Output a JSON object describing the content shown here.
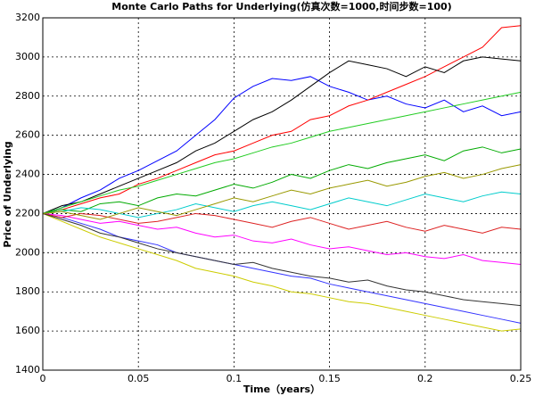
{
  "chart_data": {
    "type": "line",
    "title": "Monte Carlo Paths for Underlying(仿真次数=1000,时间步数=100)",
    "x_label": "Time（years）",
    "y_label": "Price of Underlying",
    "x": [
      0,
      0.01,
      0.02,
      0.03,
      0.04,
      0.05,
      0.06,
      0.07,
      0.08,
      0.09,
      0.1,
      0.11,
      0.12,
      0.13,
      0.14,
      0.15,
      0.16,
      0.17,
      0.18,
      0.19,
      0.2,
      0.21,
      0.22,
      0.23,
      0.24,
      0.25
    ],
    "xlim": [
      0,
      0.25
    ],
    "xticks": [
      0,
      0.05,
      0.1,
      0.15,
      0.2,
      0.25
    ],
    "ylim": [
      1400,
      3200
    ],
    "yticks": [
      1400,
      1600,
      1800,
      2000,
      2200,
      2400,
      2600,
      2800,
      3000,
      3200
    ],
    "grid": true,
    "series": [
      {
        "color": "#0000ff",
        "values": [
          2200,
          2230,
          2280,
          2320,
          2380,
          2420,
          2470,
          2520,
          2600,
          2680,
          2790,
          2850,
          2890,
          2880,
          2900,
          2850,
          2820,
          2780,
          2800,
          2760,
          2740,
          2780,
          2720,
          2750,
          2700,
          2720
        ]
      },
      {
        "color": "#ff0000",
        "values": [
          2200,
          2220,
          2250,
          2280,
          2300,
          2350,
          2380,
          2420,
          2460,
          2500,
          2520,
          2560,
          2600,
          2620,
          2680,
          2700,
          2750,
          2780,
          2820,
          2860,
          2900,
          2950,
          3000,
          3050,
          3150,
          3160
        ]
      },
      {
        "color": "#000000",
        "values": [
          2200,
          2240,
          2260,
          2300,
          2340,
          2380,
          2420,
          2460,
          2520,
          2560,
          2620,
          2680,
          2720,
          2780,
          2850,
          2920,
          2980,
          2960,
          2940,
          2900,
          2950,
          2920,
          2980,
          3000,
          2990,
          2980
        ]
      },
      {
        "color": "#cccc00",
        "values": [
          2200,
          2160,
          2120,
          2080,
          2050,
          2020,
          1990,
          1960,
          1920,
          1900,
          1880,
          1850,
          1830,
          1800,
          1790,
          1770,
          1750,
          1740,
          1720,
          1700,
          1680,
          1660,
          1640,
          1620,
          1600,
          1610
        ]
      },
      {
        "color": "#3333ff",
        "values": [
          2200,
          2180,
          2150,
          2120,
          2080,
          2060,
          2040,
          2000,
          1980,
          1960,
          1940,
          1920,
          1900,
          1880,
          1870,
          1840,
          1820,
          1800,
          1780,
          1760,
          1740,
          1720,
          1700,
          1680,
          1660,
          1640
        ]
      },
      {
        "color": "#00aa00",
        "values": [
          2200,
          2220,
          2210,
          2250,
          2260,
          2240,
          2280,
          2300,
          2290,
          2320,
          2350,
          2330,
          2360,
          2400,
          2380,
          2420,
          2450,
          2430,
          2460,
          2480,
          2500,
          2470,
          2520,
          2540,
          2510,
          2530
        ]
      },
      {
        "color": "#ff00ff",
        "values": [
          2200,
          2190,
          2170,
          2150,
          2160,
          2140,
          2120,
          2130,
          2100,
          2080,
          2090,
          2060,
          2050,
          2070,
          2040,
          2020,
          2030,
          2010,
          1990,
          2000,
          1980,
          1970,
          1990,
          1960,
          1950,
          1940
        ]
      },
      {
        "color": "#00cccc",
        "values": [
          2200,
          2210,
          2230,
          2220,
          2200,
          2180,
          2200,
          2220,
          2250,
          2230,
          2210,
          2240,
          2260,
          2240,
          2220,
          2250,
          2280,
          2260,
          2240,
          2270,
          2300,
          2280,
          2260,
          2290,
          2310,
          2300
        ]
      },
      {
        "color": "#dd2222",
        "values": [
          2200,
          2180,
          2200,
          2190,
          2170,
          2150,
          2160,
          2180,
          2200,
          2190,
          2170,
          2150,
          2130,
          2160,
          2180,
          2150,
          2120,
          2140,
          2160,
          2130,
          2110,
          2140,
          2120,
          2100,
          2130,
          2120
        ]
      },
      {
        "color": "#333333",
        "values": [
          2200,
          2170,
          2140,
          2100,
          2080,
          2050,
          2020,
          2000,
          1980,
          1960,
          1940,
          1950,
          1920,
          1900,
          1880,
          1870,
          1850,
          1860,
          1830,
          1810,
          1800,
          1780,
          1760,
          1750,
          1740,
          1730
        ]
      },
      {
        "color": "#22cc22",
        "values": [
          2200,
          2230,
          2260,
          2290,
          2320,
          2340,
          2370,
          2400,
          2430,
          2460,
          2480,
          2510,
          2540,
          2560,
          2590,
          2620,
          2640,
          2660,
          2680,
          2700,
          2720,
          2740,
          2760,
          2780,
          2800,
          2820
        ]
      },
      {
        "color": "#999900",
        "values": [
          2200,
          2210,
          2190,
          2170,
          2200,
          2230,
          2210,
          2190,
          2220,
          2250,
          2280,
          2260,
          2290,
          2320,
          2300,
          2330,
          2350,
          2370,
          2340,
          2360,
          2390,
          2410,
          2380,
          2400,
          2430,
          2450
        ]
      }
    ]
  }
}
